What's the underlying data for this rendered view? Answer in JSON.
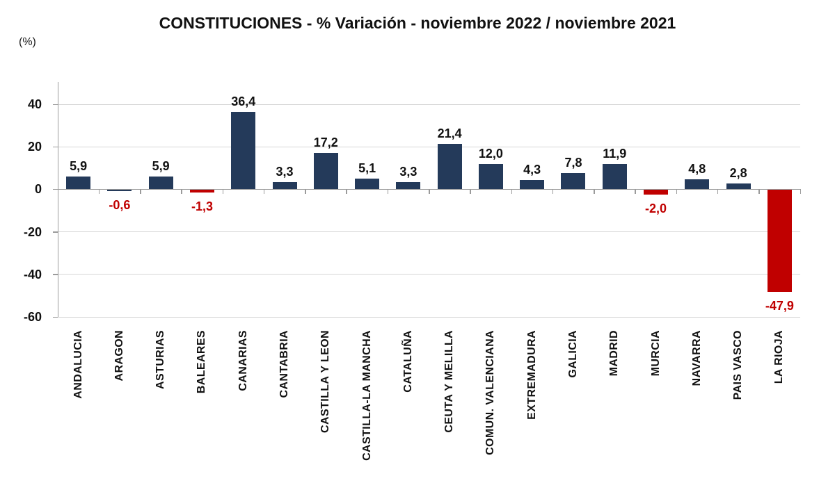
{
  "chart": {
    "title": "CONSTITUCIONES - % Variación - noviembre 2022 / noviembre 2021",
    "unit_label": "(%)"
  },
  "chart_data": {
    "type": "bar",
    "title": "CONSTITUCIONES - % Variación - noviembre 2022 / noviembre 2021",
    "ylabel": "(%)",
    "categories": [
      "ANDALUCIA",
      "ARAGON",
      "ASTURIAS",
      "BALEARES",
      "CANARIAS",
      "CANTABRIA",
      "CASTILLA Y LEON",
      "CASTILLA-LA MANCHA",
      "CATALUÑA",
      "CEUTA Y MELILLA",
      "COMUN. VALENCIANA",
      "EXTREMADURA",
      "GALICIA",
      "MADRID",
      "MURCIA",
      "NAVARRA",
      "PAIS VASCO",
      "LA RIOJA"
    ],
    "values": [
      5.9,
      -0.6,
      5.9,
      -1.3,
      36.4,
      3.3,
      17.2,
      5.1,
      3.3,
      21.4,
      12.0,
      4.3,
      7.8,
      11.9,
      -2.0,
      4.8,
      2.8,
      -47.9
    ],
    "value_labels": [
      "5,9",
      "-0,6",
      "5,9",
      "-1,3",
      "36,4",
      "3,3",
      "17,2",
      "5,1",
      "3,3",
      "21,4",
      "12,0",
      "4,3",
      "7,8",
      "11,9",
      "-2,0",
      "4,8",
      "2,8",
      "-47,9"
    ],
    "yticks": [
      40,
      20,
      0,
      -20,
      -40,
      -60
    ],
    "ylim": [
      -60,
      50.5
    ],
    "grid": true,
    "legend": false,
    "colors": {
      "positive_bar": "#243a5a",
      "negative_bar": "#c00000",
      "positive_label": "#111111",
      "negative_label": "#c00000",
      "gridline": "#d6d6d6",
      "axis": "#9b9b9b"
    },
    "bar_color_overrides": {
      "1": "#243a5a"
    }
  }
}
